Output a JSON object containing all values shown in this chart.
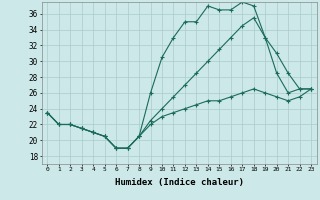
{
  "xlabel": "Humidex (Indice chaleur)",
  "ylabel": "",
  "background_color": "#cce8e8",
  "line_color": "#1a6b5a",
  "xlim": [
    -0.5,
    23.5
  ],
  "ylim": [
    17,
    37.5
  ],
  "xticks": [
    0,
    1,
    2,
    3,
    4,
    5,
    6,
    7,
    8,
    9,
    10,
    11,
    12,
    13,
    14,
    15,
    16,
    17,
    18,
    19,
    20,
    21,
    22,
    23
  ],
  "yticks": [
    18,
    20,
    22,
    24,
    26,
    28,
    30,
    32,
    34,
    36
  ],
  "line1_x": [
    0,
    1,
    2,
    3,
    4,
    5,
    6,
    7,
    8,
    9,
    10,
    11,
    12,
    13,
    14,
    15,
    16,
    17,
    18,
    19,
    20,
    21,
    22,
    23
  ],
  "line1_y": [
    23.5,
    22.0,
    22.0,
    21.5,
    21.0,
    20.5,
    19.0,
    19.0,
    20.5,
    26.0,
    30.5,
    33.0,
    35.0,
    35.0,
    37.0,
    36.5,
    36.5,
    37.5,
    37.0,
    33.0,
    31.0,
    28.5,
    26.5,
    26.5
  ],
  "line2_x": [
    0,
    1,
    2,
    3,
    4,
    5,
    6,
    7,
    8,
    9,
    10,
    11,
    12,
    13,
    14,
    15,
    16,
    17,
    18,
    19,
    20,
    21,
    22,
    23
  ],
  "line2_y": [
    23.5,
    22.0,
    22.0,
    21.5,
    21.0,
    20.5,
    19.0,
    19.0,
    20.5,
    22.0,
    23.0,
    23.5,
    24.0,
    24.5,
    25.0,
    25.0,
    25.5,
    26.0,
    26.5,
    26.0,
    25.5,
    25.0,
    25.5,
    26.5
  ],
  "line3_x": [
    0,
    1,
    2,
    3,
    4,
    5,
    6,
    7,
    8,
    9,
    10,
    11,
    12,
    13,
    14,
    15,
    16,
    17,
    18,
    19,
    20,
    21,
    22,
    23
  ],
  "line3_y": [
    23.5,
    22.0,
    22.0,
    21.5,
    21.0,
    20.5,
    19.0,
    19.0,
    20.5,
    22.5,
    24.0,
    25.5,
    27.0,
    28.5,
    30.0,
    31.5,
    33.0,
    34.5,
    35.5,
    33.0,
    28.5,
    26.0,
    26.5,
    26.5
  ]
}
